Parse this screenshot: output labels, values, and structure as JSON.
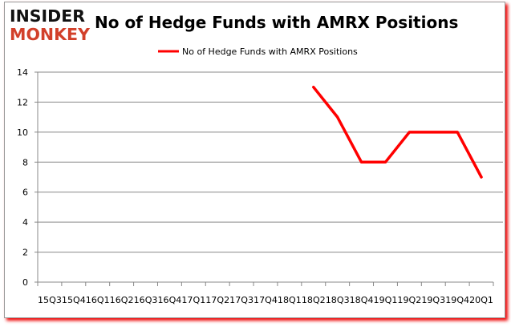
{
  "logo": {
    "line1": "INSIDER",
    "line2": "MONKEY"
  },
  "chart_data": {
    "type": "line",
    "title": "No of Hedge Funds with AMRX Positions",
    "legend": {
      "entries": [
        "No of Hedge Funds with AMRX Positions"
      ],
      "placement": "top"
    },
    "categories": [
      "15Q3",
      "15Q4",
      "16Q1",
      "16Q2",
      "16Q3",
      "16Q4",
      "17Q1",
      "17Q2",
      "17Q3",
      "17Q4",
      "18Q1",
      "18Q2",
      "18Q3",
      "18Q4",
      "19Q1",
      "19Q2",
      "19Q3",
      "19Q4",
      "20Q1"
    ],
    "series": [
      {
        "name": "No of Hedge Funds with AMRX Positions",
        "color": "#ff0000",
        "values": [
          null,
          null,
          null,
          null,
          null,
          null,
          null,
          null,
          null,
          null,
          null,
          13,
          11,
          8,
          8,
          10,
          10,
          10,
          7
        ]
      }
    ],
    "ylim": [
      0,
      14
    ],
    "yticks": [
      0,
      2,
      4,
      6,
      8,
      10,
      12,
      14
    ],
    "grid": true,
    "xlabel": "",
    "ylabel": ""
  }
}
